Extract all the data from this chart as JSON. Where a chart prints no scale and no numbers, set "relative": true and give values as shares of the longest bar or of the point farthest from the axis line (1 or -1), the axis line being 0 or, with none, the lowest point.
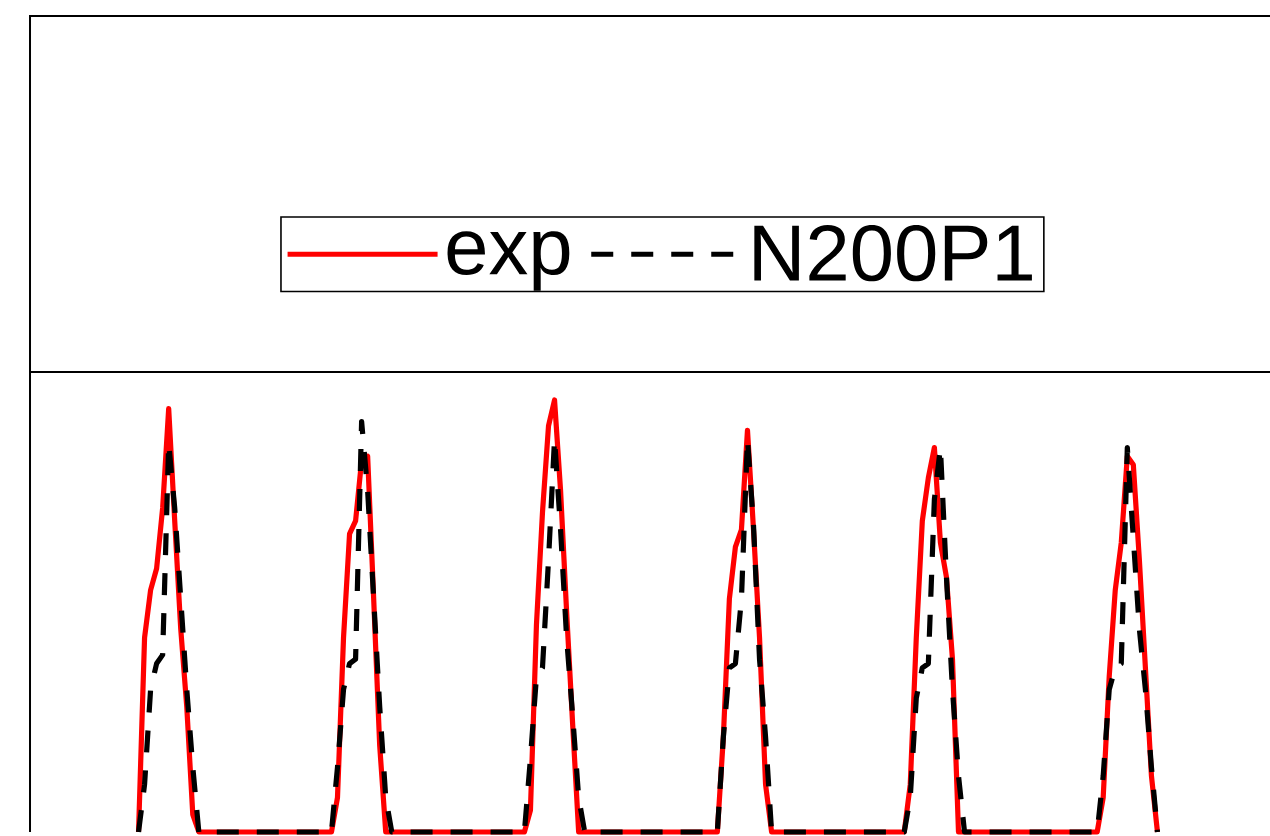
{
  "chart_data": {
    "type": "line",
    "relative": true,
    "legend": "top",
    "categories": [
      null,
      null,
      null,
      null,
      null,
      null,
      null,
      null,
      null,
      null,
      null,
      null,
      null,
      null,
      null,
      null,
      null,
      null,
      null,
      null,
      null,
      null,
      null,
      null,
      null,
      null,
      null,
      null,
      null,
      null,
      null,
      null,
      null,
      null,
      null,
      null,
      null,
      null,
      null,
      null,
      null,
      null,
      null,
      null,
      null,
      null,
      null,
      null,
      null,
      null,
      null,
      null,
      null,
      null,
      null,
      null,
      null,
      null,
      null,
      null,
      null,
      null,
      null,
      null,
      null,
      null,
      null,
      null,
      null,
      null,
      null,
      null,
      null,
      null,
      null,
      null,
      null,
      null,
      null,
      null,
      null,
      null,
      null,
      null,
      null,
      null,
      null,
      null,
      null,
      null,
      null,
      null,
      null,
      null,
      null,
      null,
      null,
      null,
      null,
      null,
      null,
      null,
      null,
      null,
      null,
      null,
      null,
      null,
      null,
      null,
      null,
      null,
      null,
      null,
      null,
      null,
      null,
      null,
      null,
      null,
      null,
      null,
      null,
      null,
      null,
      null,
      null,
      null,
      null,
      null,
      null,
      null,
      null,
      null,
      null,
      null,
      null,
      null,
      null,
      null,
      null,
      null,
      null,
      null,
      null,
      null,
      null,
      null,
      null,
      null,
      null,
      null,
      null,
      null,
      null,
      null,
      null,
      null,
      null,
      null,
      null,
      null,
      null,
      null,
      null,
      null,
      null,
      null,
      null,
      null
    ],
    "series": [
      {
        "name": "exp",
        "color": "#ff0000",
        "line_style": "solid",
        "values": [
          0,
          0.45,
          0.56,
          0.61,
          0.75,
          0.98,
          0.72,
          0.47,
          0.29,
          0.04,
          0,
          0,
          0,
          0,
          0,
          0,
          0,
          0,
          0,
          0,
          0,
          0,
          0,
          0,
          0,
          0,
          0,
          0,
          0,
          0,
          0,
          0,
          0,
          0.08,
          0.45,
          0.69,
          0.72,
          0.86,
          0.87,
          0.54,
          0.2,
          0,
          0,
          0,
          0,
          0,
          0,
          0,
          0,
          0,
          0,
          0,
          0,
          0,
          0,
          0,
          0,
          0,
          0,
          0,
          0,
          0,
          0,
          0,
          0,
          0.05,
          0.48,
          0.74,
          0.94,
          1,
          0.79,
          0.51,
          0.25,
          0,
          0,
          0,
          0,
          0,
          0,
          0,
          0,
          0,
          0,
          0,
          0,
          0,
          0,
          0,
          0,
          0,
          0,
          0,
          0,
          0,
          0,
          0,
          0,
          0.22,
          0.54,
          0.66,
          0.7,
          0.93,
          0.7,
          0.45,
          0.11,
          0,
          0,
          0,
          0,
          0,
          0,
          0,
          0,
          0,
          0,
          0,
          0,
          0,
          0,
          0,
          0,
          0,
          0,
          0,
          0,
          0,
          0,
          0,
          0.11,
          0.45,
          0.72,
          0.82,
          0.89,
          0.67,
          0.59,
          0.4,
          0,
          0,
          0,
          0,
          0,
          0,
          0,
          0,
          0,
          0,
          0,
          0,
          0,
          0,
          0,
          0,
          0,
          0,
          0,
          0,
          0,
          0,
          0,
          0,
          0.08,
          0.36,
          0.56,
          0.67,
          0.87,
          0.85,
          0.63,
          0.38,
          0.13,
          0
        ]
      },
      {
        "name": "N200P1",
        "color": "#000000",
        "line_style": "dashed",
        "values": [
          0,
          0.11,
          0.33,
          0.39,
          0.41,
          0.9,
          0.75,
          0.54,
          0.33,
          0.15,
          0,
          0,
          0,
          0,
          0,
          0,
          0,
          0,
          0,
          0,
          0,
          0,
          0,
          0,
          0,
          0,
          0,
          0,
          0,
          0,
          0,
          0,
          0,
          0.15,
          0.33,
          0.39,
          0.4,
          0.95,
          0.79,
          0.54,
          0.29,
          0.08,
          0,
          0,
          0,
          0,
          0,
          0,
          0,
          0,
          0,
          0,
          0,
          0,
          0,
          0,
          0,
          0,
          0,
          0,
          0,
          0,
          0,
          0,
          0,
          0.17,
          0.36,
          0.38,
          0.63,
          0.91,
          0.7,
          0.45,
          0.27,
          0.08,
          0,
          0,
          0,
          0,
          0,
          0,
          0,
          0,
          0,
          0,
          0,
          0,
          0,
          0,
          0,
          0,
          0,
          0,
          0,
          0,
          0,
          0,
          0,
          0.22,
          0.38,
          0.39,
          0.54,
          0.91,
          0.71,
          0.4,
          0.22,
          0,
          0,
          0,
          0,
          0,
          0,
          0,
          0,
          0,
          0,
          0,
          0,
          0,
          0,
          0,
          0,
          0,
          0,
          0,
          0,
          0,
          0,
          0,
          0.08,
          0.31,
          0.38,
          0.39,
          0.77,
          0.89,
          0.59,
          0.33,
          0.13,
          0,
          0,
          0,
          0,
          0,
          0,
          0,
          0,
          0,
          0,
          0,
          0,
          0,
          0,
          0,
          0,
          0,
          0,
          0,
          0,
          0,
          0,
          0,
          0.13,
          0.33,
          0.38,
          0.39,
          0.89,
          0.68,
          0.47,
          0.33,
          0.15,
          0
        ]
      }
    ]
  }
}
